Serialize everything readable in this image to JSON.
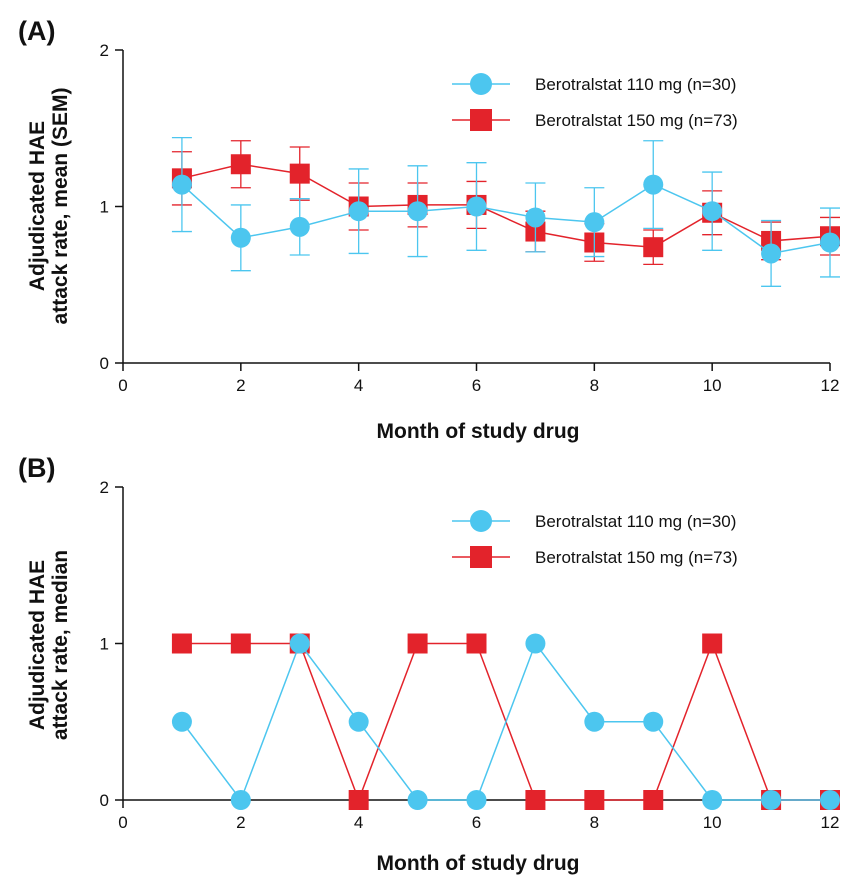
{
  "colors": {
    "series_110": "#4cc6ef",
    "series_150": "#e3232b",
    "axis": "#111111"
  },
  "chart_data": [
    {
      "type": "line",
      "panel_label": "(A)",
      "xlabel": "Month of study drug",
      "ylabel_line1": "Adjudicated HAE",
      "ylabel_line2": "attack rate, mean (SEM)",
      "xlim": [
        0,
        12
      ],
      "ylim": [
        0,
        2
      ],
      "xticks": [
        "0",
        "2",
        "4",
        "6",
        "8",
        "10",
        "12"
      ],
      "yticks": [
        "0",
        "1",
        "2"
      ],
      "legend_position": "top-right",
      "x": [
        1,
        2,
        3,
        4,
        5,
        6,
        7,
        8,
        9,
        10,
        11,
        12
      ],
      "series": [
        {
          "name": "Berotralstat 150 mg (n=73)",
          "marker": "square",
          "color": "#e3232b",
          "values": [
            1.18,
            1.27,
            1.21,
            1.0,
            1.01,
            1.01,
            0.84,
            0.77,
            0.74,
            0.96,
            0.78,
            0.81
          ],
          "error": [
            0.17,
            0.15,
            0.17,
            0.15,
            0.14,
            0.15,
            0.13,
            0.12,
            0.11,
            0.14,
            0.12,
            0.12
          ]
        },
        {
          "name": "Berotralstat 110 mg (n=30)",
          "marker": "circle",
          "color": "#4cc6ef",
          "values": [
            1.14,
            0.8,
            0.87,
            0.97,
            0.97,
            1.0,
            0.93,
            0.9,
            1.14,
            0.97,
            0.7,
            0.77
          ],
          "error": [
            0.3,
            0.21,
            0.18,
            0.27,
            0.29,
            0.28,
            0.22,
            0.22,
            0.28,
            0.25,
            0.21,
            0.22
          ]
        }
      ]
    },
    {
      "type": "line",
      "panel_label": "(B)",
      "xlabel": "Month of study drug",
      "ylabel_line1": "Adjudicated HAE",
      "ylabel_line2": "attack rate, median",
      "xlim": [
        0,
        12
      ],
      "ylim": [
        0,
        2
      ],
      "xticks": [
        "0",
        "2",
        "4",
        "6",
        "8",
        "10",
        "12"
      ],
      "yticks": [
        "0",
        "1",
        "2"
      ],
      "legend_position": "top-right",
      "x": [
        1,
        2,
        3,
        4,
        5,
        6,
        7,
        8,
        9,
        10,
        11,
        12
      ],
      "series": [
        {
          "name": "Berotralstat 150 mg (n=73)",
          "marker": "square",
          "color": "#e3232b",
          "values": [
            1,
            1,
            1,
            0,
            1,
            1,
            0,
            0,
            0,
            1,
            0,
            0
          ]
        },
        {
          "name": "Berotralstat 110 mg (n=30)",
          "marker": "circle",
          "color": "#4cc6ef",
          "values": [
            0.5,
            0,
            1,
            0.5,
            0,
            0,
            1,
            0.5,
            0.5,
            0,
            0,
            0
          ]
        }
      ]
    }
  ]
}
